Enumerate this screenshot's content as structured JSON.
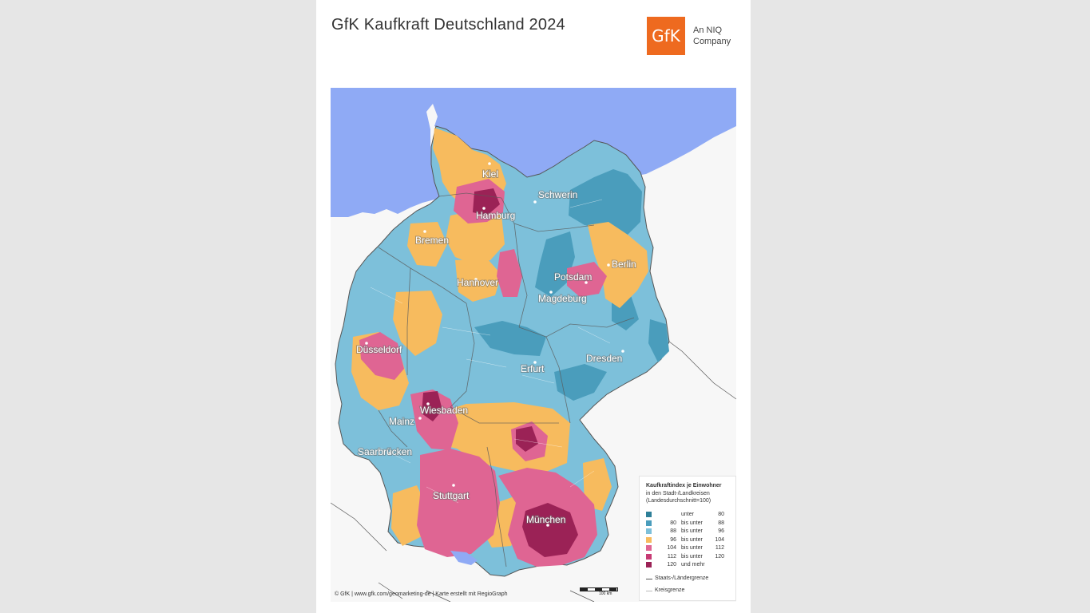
{
  "title": "GfK Kaufkraft Deutschland 2024",
  "logo": {
    "text": "GfK",
    "tagline": "An NIQ Company",
    "color": "#ee6a1f"
  },
  "map": {
    "colors": {
      "sea": "#8faaf5",
      "land_outside": "#f7f7f7"
    },
    "cities": [
      {
        "name": "Kiel"
      },
      {
        "name": "Hamburg"
      },
      {
        "name": "Schwerin"
      },
      {
        "name": "Bremen"
      },
      {
        "name": "Hannover"
      },
      {
        "name": "Potsdam"
      },
      {
        "name": "Berlin"
      },
      {
        "name": "Magdeburg"
      },
      {
        "name": "Düsseldorf"
      },
      {
        "name": "Dresden"
      },
      {
        "name": "Erfurt"
      },
      {
        "name": "Wiesbaden"
      },
      {
        "name": "Mainz"
      },
      {
        "name": "Saarbrücken"
      },
      {
        "name": "Stuttgart"
      },
      {
        "name": "München"
      }
    ]
  },
  "legend": {
    "title": "Kaufkraftindex je Einwohner",
    "subtitle1": "in den Stadt-/Landkreisen",
    "subtitle2": "(Landesdurchschnitt=100)",
    "classes": [
      {
        "from": "",
        "mid": "unter",
        "to": "80",
        "color": "#2e7f98"
      },
      {
        "from": "80",
        "mid": "bis unter",
        "to": "88",
        "color": "#4a9dbc"
      },
      {
        "from": "88",
        "mid": "bis unter",
        "to": "96",
        "color": "#7dc0da"
      },
      {
        "from": "96",
        "mid": "bis unter",
        "to": "104",
        "color": "#f7bb5e"
      },
      {
        "from": "104",
        "mid": "bis unter",
        "to": "112",
        "color": "#df6593"
      },
      {
        "from": "112",
        "mid": "bis unter",
        "to": "120",
        "color": "#c73a74"
      },
      {
        "from": "120",
        "mid": "und mehr",
        "to": "",
        "color": "#9b2256"
      }
    ],
    "lines": [
      {
        "label": "Staats-/Ländergrenze",
        "color": "#555555"
      },
      {
        "label": "Kreisgrenze",
        "color": "#bbbbbb"
      }
    ]
  },
  "scalebar": {
    "label": "100 km"
  },
  "credit": "© GfK | www.gfk.com/geomarketing-de | Karte erstellt mit RegioGraph"
}
